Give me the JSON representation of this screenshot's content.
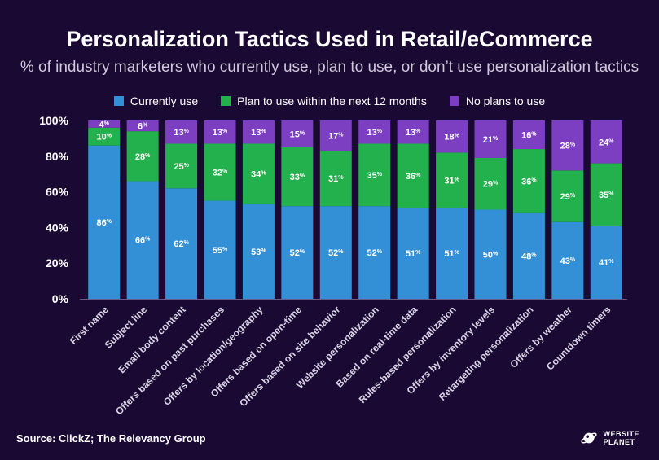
{
  "title": "Personalization Tactics Used in Retail/eCommerce",
  "subtitle": "% of industry marketers who currently use, plan to use, or don’t use personalization tactics",
  "source": "Source: ClickZ; The Relevancy Group",
  "brand": {
    "line1": "WEBSITE",
    "line2": "PLANET",
    "logo_icon": "planet-logo-icon"
  },
  "value_suffix": "%",
  "chart_data": {
    "type": "bar",
    "stacked": true,
    "title": "Personalization Tactics Used in Retail/eCommerce",
    "subtitle": "% of industry marketers who currently use, plan to use, or don’t use personalization tactics",
    "categories": [
      "First name",
      "Subject line",
      "Email body content",
      "Offers based on past purchases",
      "Offers by location/geography",
      "Offers based on open-time",
      "Offers based on site behavior",
      "Website personalization",
      "Based on real-time data",
      "Rules-based personalization",
      "Offers by inventory levels",
      "Retargeting personalization",
      "Offers by weather",
      "Countdown timers"
    ],
    "series": [
      {
        "name": "Currently use",
        "color": "#3390d6",
        "values": [
          86,
          66,
          62,
          55,
          53,
          52,
          52,
          52,
          51,
          51,
          50,
          48,
          43,
          41
        ]
      },
      {
        "name": "Plan to use within the next 12 months",
        "color": "#22b14c",
        "values": [
          10,
          28,
          25,
          32,
          34,
          33,
          31,
          35,
          36,
          31,
          29,
          36,
          29,
          35
        ]
      },
      {
        "name": "No plans to use",
        "color": "#7d3fc2",
        "values": [
          4,
          6,
          13,
          13,
          13,
          15,
          17,
          13,
          13,
          18,
          21,
          16,
          28,
          24
        ]
      }
    ],
    "ylim": [
      0,
      100
    ],
    "yticks": [
      "0%",
      "20%",
      "40%",
      "60%",
      "80%",
      "100%"
    ],
    "ytick_values": [
      0,
      20,
      40,
      60,
      80,
      100
    ],
    "xlabel": "",
    "ylabel": "",
    "grid": false,
    "legend_position": "top"
  }
}
